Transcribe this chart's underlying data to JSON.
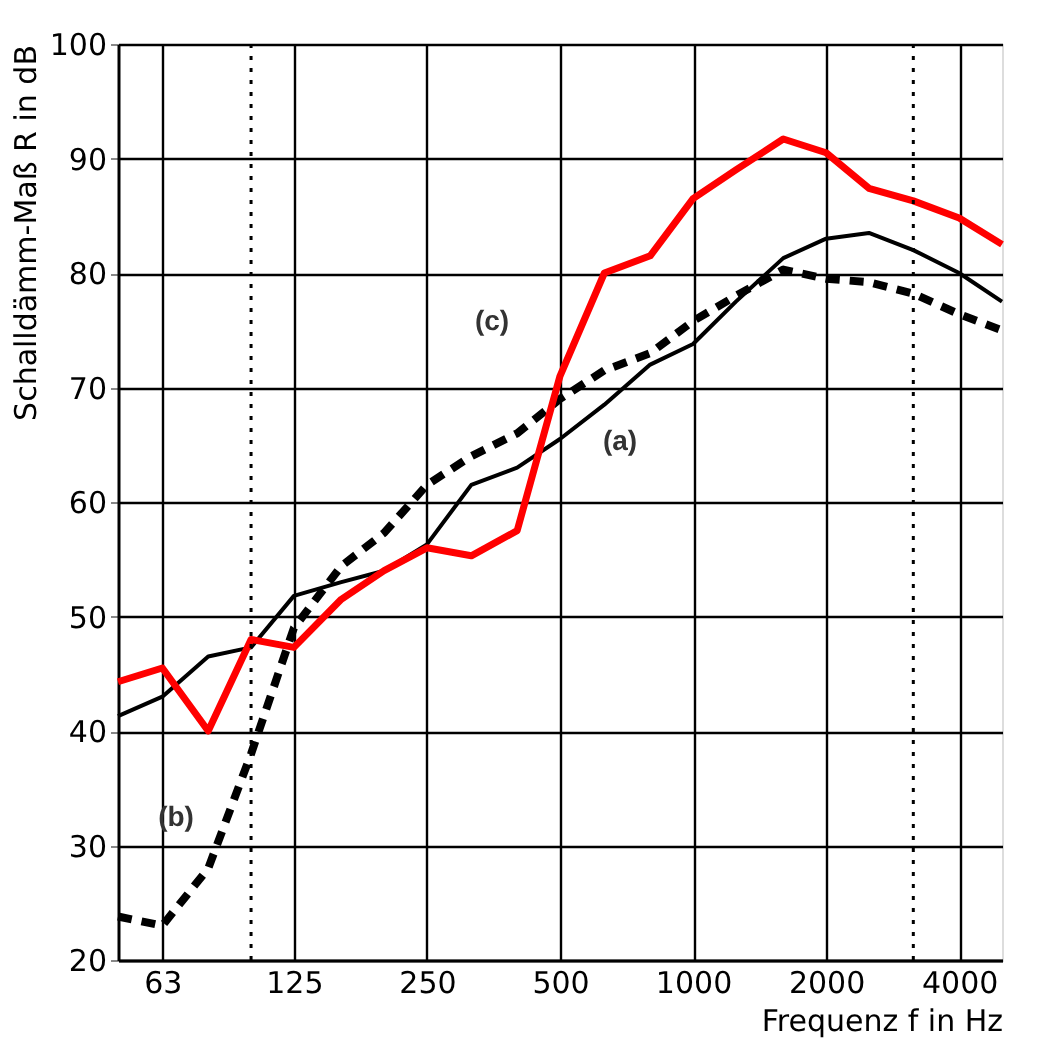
{
  "chart_data": {
    "type": "line",
    "xlabel": "Frequenz f in Hz",
    "ylabel": "Schalldämm-Maß R in dB",
    "x": [
      50,
      63,
      80,
      100,
      125,
      160,
      200,
      250,
      315,
      400,
      500,
      630,
      800,
      1000,
      1250,
      1600,
      2000,
      2500,
      3150,
      4000,
      5000
    ],
    "series": [
      {
        "color": "#000000",
        "line_style": "solid",
        "values": [
          41.3,
          43,
          46.5,
          47.3,
          51.8,
          53,
          54,
          56.3,
          61.5,
          63,
          65.5,
          68.5,
          72,
          73.8,
          77.5,
          81.3,
          83,
          83.5,
          82,
          80,
          77.5
        ]
      },
      {
        "color": "#000000",
        "line_style": "dashed",
        "values": [
          23.8,
          23,
          28,
          38,
          49,
          54.4,
          57.3,
          61.5,
          64,
          66,
          69,
          71.5,
          73,
          75.8,
          78,
          80.3,
          79.5,
          79.2,
          78.2,
          76.4,
          75
        ]
      },
      {
        "color": "#ff0000",
        "line_style": "solid",
        "values": [
          44.3,
          45.5,
          40,
          48,
          47.3,
          51.5,
          54,
          56,
          55.3,
          57.5,
          71,
          80,
          81.5,
          86.5,
          89,
          91.7,
          90.5,
          87.4,
          86.3,
          84.8,
          82.5
        ]
      }
    ],
    "annotations": [
      "(a)",
      "(b)",
      "(c)"
    ],
    "ref_lines": [
      {
        "axis": "x",
        "value": 100,
        "color": "#000000",
        "line_style": "dotted"
      },
      {
        "axis": "x",
        "value": 3150,
        "color": "#000000",
        "line_style": "dotted"
      }
    ],
    "log": "x",
    "xlim": [
      50,
      5000
    ],
    "xticks": [
      63,
      125,
      250,
      500,
      1000,
      2000,
      4000
    ],
    "ylim": [
      20,
      100
    ],
    "yticks": [
      20,
      30,
      40,
      50,
      60,
      70,
      80,
      90,
      100
    ],
    "grid": true,
    "marker": "none"
  }
}
